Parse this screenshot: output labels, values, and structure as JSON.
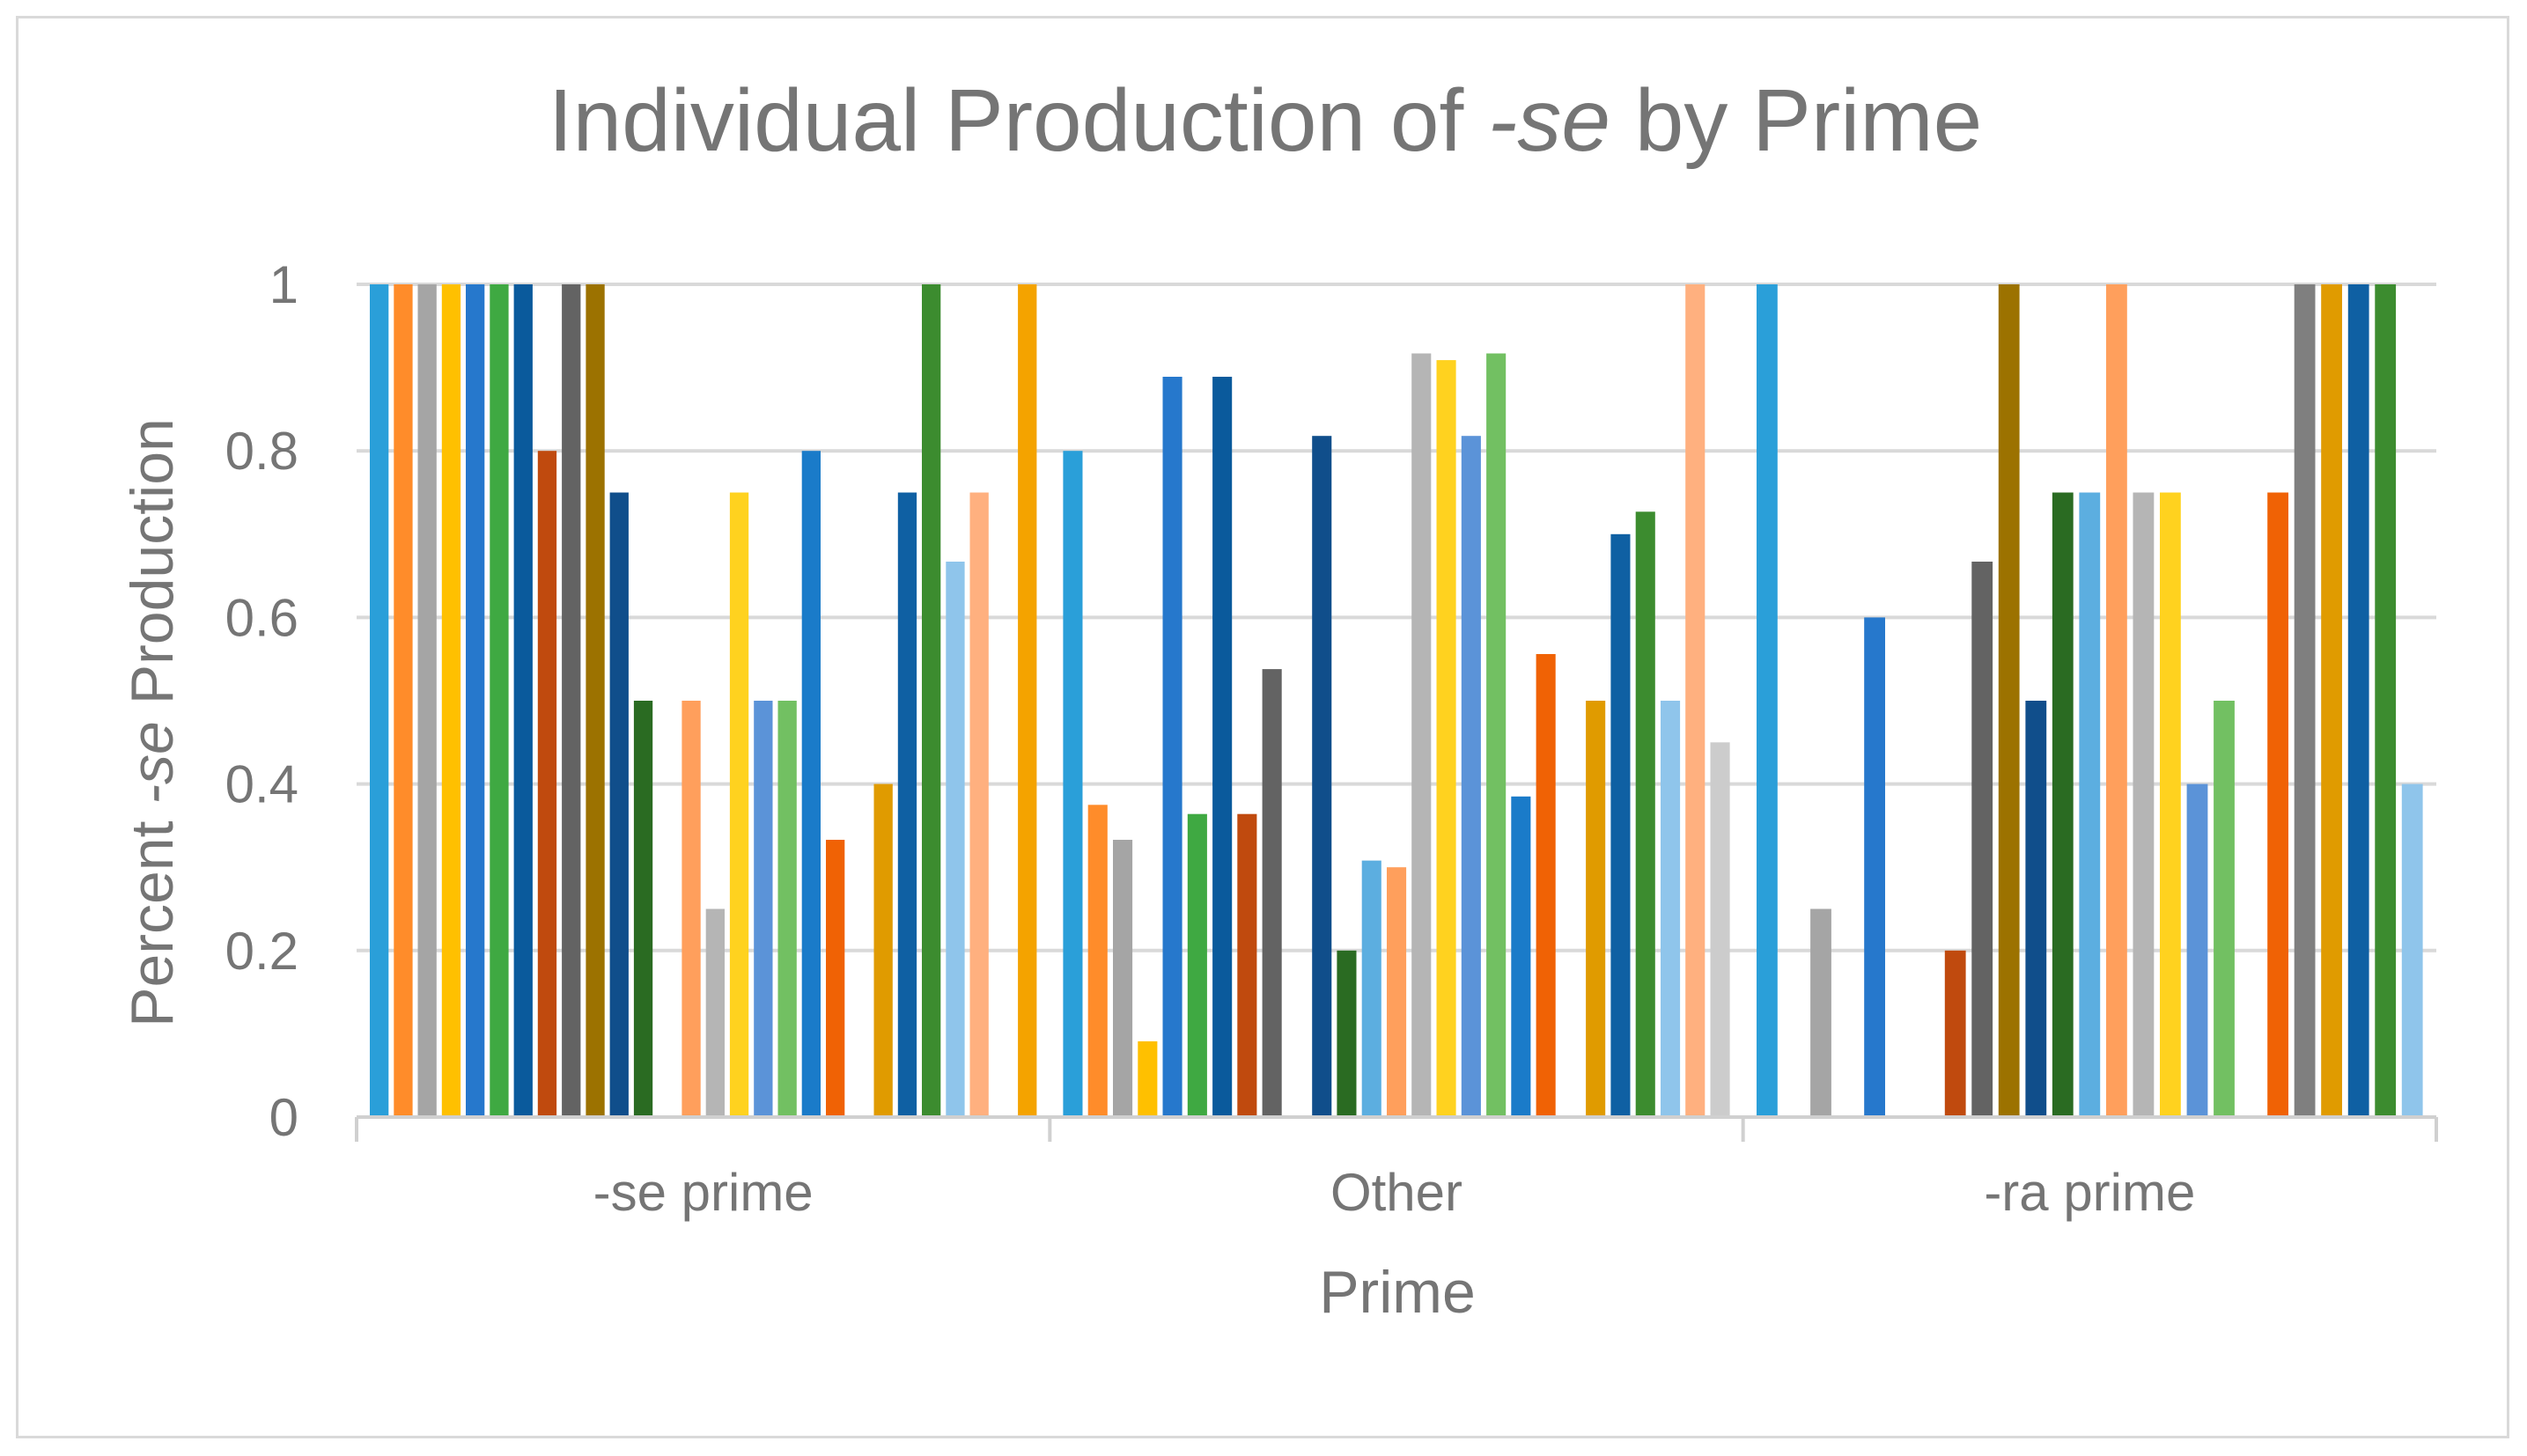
{
  "chart_data": {
    "type": "bar",
    "title": {
      "prefix": "Individual Production of ",
      "italic": "-se",
      "suffix": " by Prime"
    },
    "xlabel": "Prime",
    "ylabel": {
      "prefix": "Percent ",
      "italic": "-se",
      "suffix": " Production"
    },
    "ylim": [
      0,
      1
    ],
    "yticks": [
      "0",
      "0.2",
      "0.4",
      "0.6",
      "0.8",
      "1"
    ],
    "grid": true,
    "legend": "none",
    "categories": [
      "-se prime",
      "Other",
      "-ra prime"
    ],
    "groups": [
      {
        "category": "-se prime",
        "values": [
          1,
          1,
          1,
          1,
          1,
          1,
          1,
          0.8,
          1,
          1,
          0.75,
          0.5,
          0,
          0.5,
          0.25,
          0.75,
          0.5,
          0.5,
          0.8,
          0.333,
          0,
          0.4,
          0.75,
          1,
          0.667,
          0.75,
          0,
          1
        ]
      },
      {
        "category": "Other",
        "values": [
          0.8,
          0.375,
          0.333,
          0.091,
          0.889,
          0.364,
          0.889,
          0.364,
          0.538,
          0,
          0.818,
          0.2,
          0.308,
          0.3,
          0.917,
          0.909,
          0.818,
          0.917,
          0.385,
          0.556,
          0,
          0.5,
          0.7,
          0.727,
          0.5,
          1,
          0.45
        ]
      },
      {
        "category": "-ra prime",
        "values": [
          1,
          0,
          0.25,
          0,
          0.6,
          0,
          0,
          0.2,
          0.667,
          1,
          0.5,
          0.75,
          0.75,
          1,
          0.75,
          0.75,
          0.4,
          0.5,
          0,
          0.75,
          1,
          1,
          1,
          1,
          0.4
        ]
      }
    ],
    "palette": [
      "#2a9fd9",
      "#ff8c2a",
      "#a5a5a5",
      "#ffc000",
      "#2678cc",
      "#3fa942",
      "#0a5a9c",
      "#c04a0e",
      "#636363",
      "#9c7200",
      "#104e8b",
      "#2a6b22",
      "#5caee0",
      "#ff9f5c",
      "#b5b5b5",
      "#ffd21f",
      "#5b93d8",
      "#72c062",
      "#1a7bc9",
      "#f06205",
      "#7f7f7f",
      "#e09b00",
      "#0f60a3",
      "#3c8c2f",
      "#8fc5eb",
      "#ffb07f",
      "#cccccc",
      "#f4a300"
    ]
  }
}
